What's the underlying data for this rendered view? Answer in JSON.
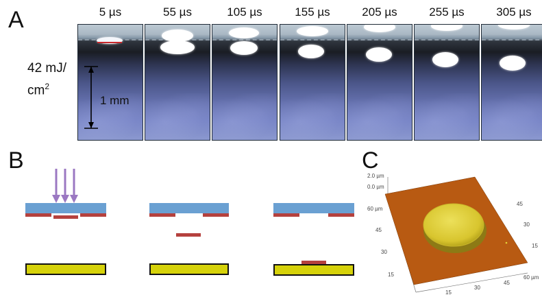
{
  "panels": {
    "a_letter": "A",
    "b_letter": "B",
    "c_letter": "C"
  },
  "panel_a": {
    "time_labels": [
      "5 µs",
      "55 µs",
      "105 µs",
      "155 µs",
      "205 µs",
      "255 µs",
      "305 µs"
    ],
    "fluence_line1": "42 mJ/",
    "fluence_line2_base": "cm",
    "fluence_line2_sup": "2",
    "scale_bar_label": "1 mm"
  },
  "panel_c": {
    "z_ticks": [
      "2.0 µm",
      "0.0 µm"
    ],
    "left_axis_ticks": [
      "60 µm",
      "45",
      "30",
      "15"
    ],
    "bottom_axis_ticks": [
      "15",
      "30",
      "45",
      "60 µm"
    ],
    "right_axis_ticks": [
      "45",
      "30",
      "15"
    ]
  },
  "colors": {
    "substrate_blue": "#6aa0d2",
    "film_red": "#b5413e",
    "receiver_yellow": "#d6d20a",
    "laser_purple": "#9b78c2",
    "afm_background": "#b85a12",
    "afm_dot": "#e3d43a"
  }
}
